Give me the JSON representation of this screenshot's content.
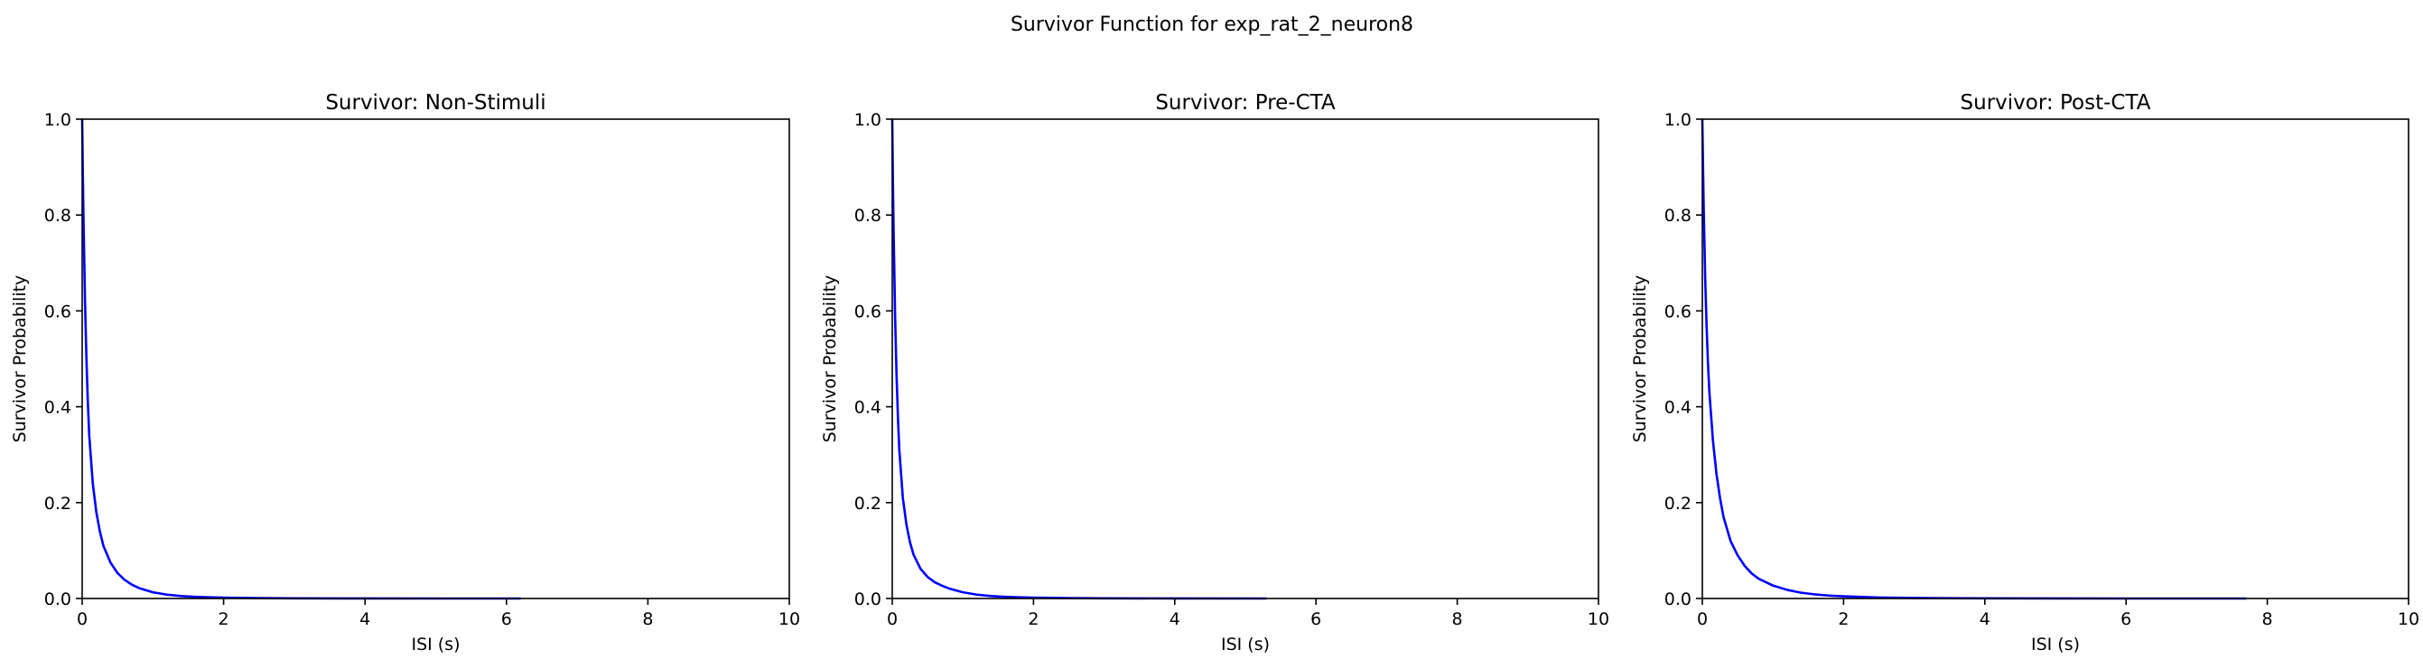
{
  "figure": {
    "suptitle": "Survivor Function for exp_rat_2_neuron8"
  },
  "colors": {
    "line": "#0000ff",
    "axis": "#000000",
    "background": "#ffffff"
  },
  "chart_data": [
    {
      "type": "line",
      "title": "Survivor: Non-Stimuli",
      "xlabel": "ISI (s)",
      "ylabel": "Survivor Probability",
      "xlim": [
        0,
        10
      ],
      "ylim": [
        0,
        1
      ],
      "xticks": [
        0,
        2,
        4,
        6,
        8,
        10
      ],
      "yticks": [
        0.0,
        0.2,
        0.4,
        0.6,
        0.8,
        1.0
      ],
      "grid": false,
      "series": [
        {
          "name": "survivor",
          "x": [
            0,
            0.01,
            0.02,
            0.04,
            0.06,
            0.08,
            0.1,
            0.15,
            0.2,
            0.25,
            0.3,
            0.4,
            0.5,
            0.6,
            0.7,
            0.8,
            1.0,
            1.2,
            1.4,
            1.6,
            1.8,
            2.0,
            2.5,
            3.0,
            4.0,
            5.0,
            6.2
          ],
          "y": [
            1.0,
            0.88,
            0.78,
            0.62,
            0.5,
            0.41,
            0.34,
            0.24,
            0.18,
            0.14,
            0.11,
            0.075,
            0.053,
            0.039,
            0.029,
            0.022,
            0.013,
            0.008,
            0.005,
            0.0035,
            0.0025,
            0.0018,
            0.0008,
            0.0004,
            0.0001,
            0.0,
            0.0
          ]
        }
      ]
    },
    {
      "type": "line",
      "title": "Survivor: Pre-CTA",
      "xlabel": "ISI (s)",
      "ylabel": "Survivor Probability",
      "xlim": [
        0,
        10
      ],
      "ylim": [
        0,
        1
      ],
      "xticks": [
        0,
        2,
        4,
        6,
        8,
        10
      ],
      "yticks": [
        0.0,
        0.2,
        0.4,
        0.6,
        0.8,
        1.0
      ],
      "grid": false,
      "series": [
        {
          "name": "survivor",
          "x": [
            0,
            0.01,
            0.02,
            0.04,
            0.06,
            0.08,
            0.1,
            0.15,
            0.2,
            0.25,
            0.3,
            0.4,
            0.5,
            0.6,
            0.7,
            0.8,
            1.0,
            1.2,
            1.4,
            1.6,
            1.8,
            2.0,
            2.5,
            3.0,
            4.0,
            5.3
          ],
          "y": [
            1.0,
            0.86,
            0.76,
            0.59,
            0.47,
            0.38,
            0.31,
            0.21,
            0.155,
            0.118,
            0.092,
            0.062,
            0.045,
            0.034,
            0.027,
            0.021,
            0.013,
            0.008,
            0.005,
            0.0035,
            0.0025,
            0.0018,
            0.0008,
            0.0004,
            0.0001,
            0.0
          ]
        }
      ]
    },
    {
      "type": "line",
      "title": "Survivor: Post-CTA",
      "xlabel": "ISI (s)",
      "ylabel": "Survivor Probability",
      "xlim": [
        0,
        10
      ],
      "ylim": [
        0,
        1
      ],
      "xticks": [
        0,
        2,
        4,
        6,
        8,
        10
      ],
      "yticks": [
        0.0,
        0.2,
        0.4,
        0.6,
        0.8,
        1.0
      ],
      "grid": false,
      "series": [
        {
          "name": "survivor",
          "x": [
            0,
            0.01,
            0.02,
            0.04,
            0.06,
            0.08,
            0.1,
            0.15,
            0.2,
            0.25,
            0.3,
            0.4,
            0.5,
            0.6,
            0.7,
            0.8,
            1.0,
            1.2,
            1.4,
            1.6,
            1.8,
            2.0,
            2.5,
            3.0,
            4.0,
            5.0,
            6.0,
            7.7
          ],
          "y": [
            1.0,
            0.9,
            0.81,
            0.67,
            0.57,
            0.49,
            0.43,
            0.33,
            0.26,
            0.21,
            0.17,
            0.12,
            0.09,
            0.068,
            0.052,
            0.041,
            0.027,
            0.018,
            0.012,
            0.0085,
            0.006,
            0.0045,
            0.002,
            0.001,
            0.0003,
            0.0001,
            0.0,
            0.0
          ]
        }
      ]
    }
  ]
}
